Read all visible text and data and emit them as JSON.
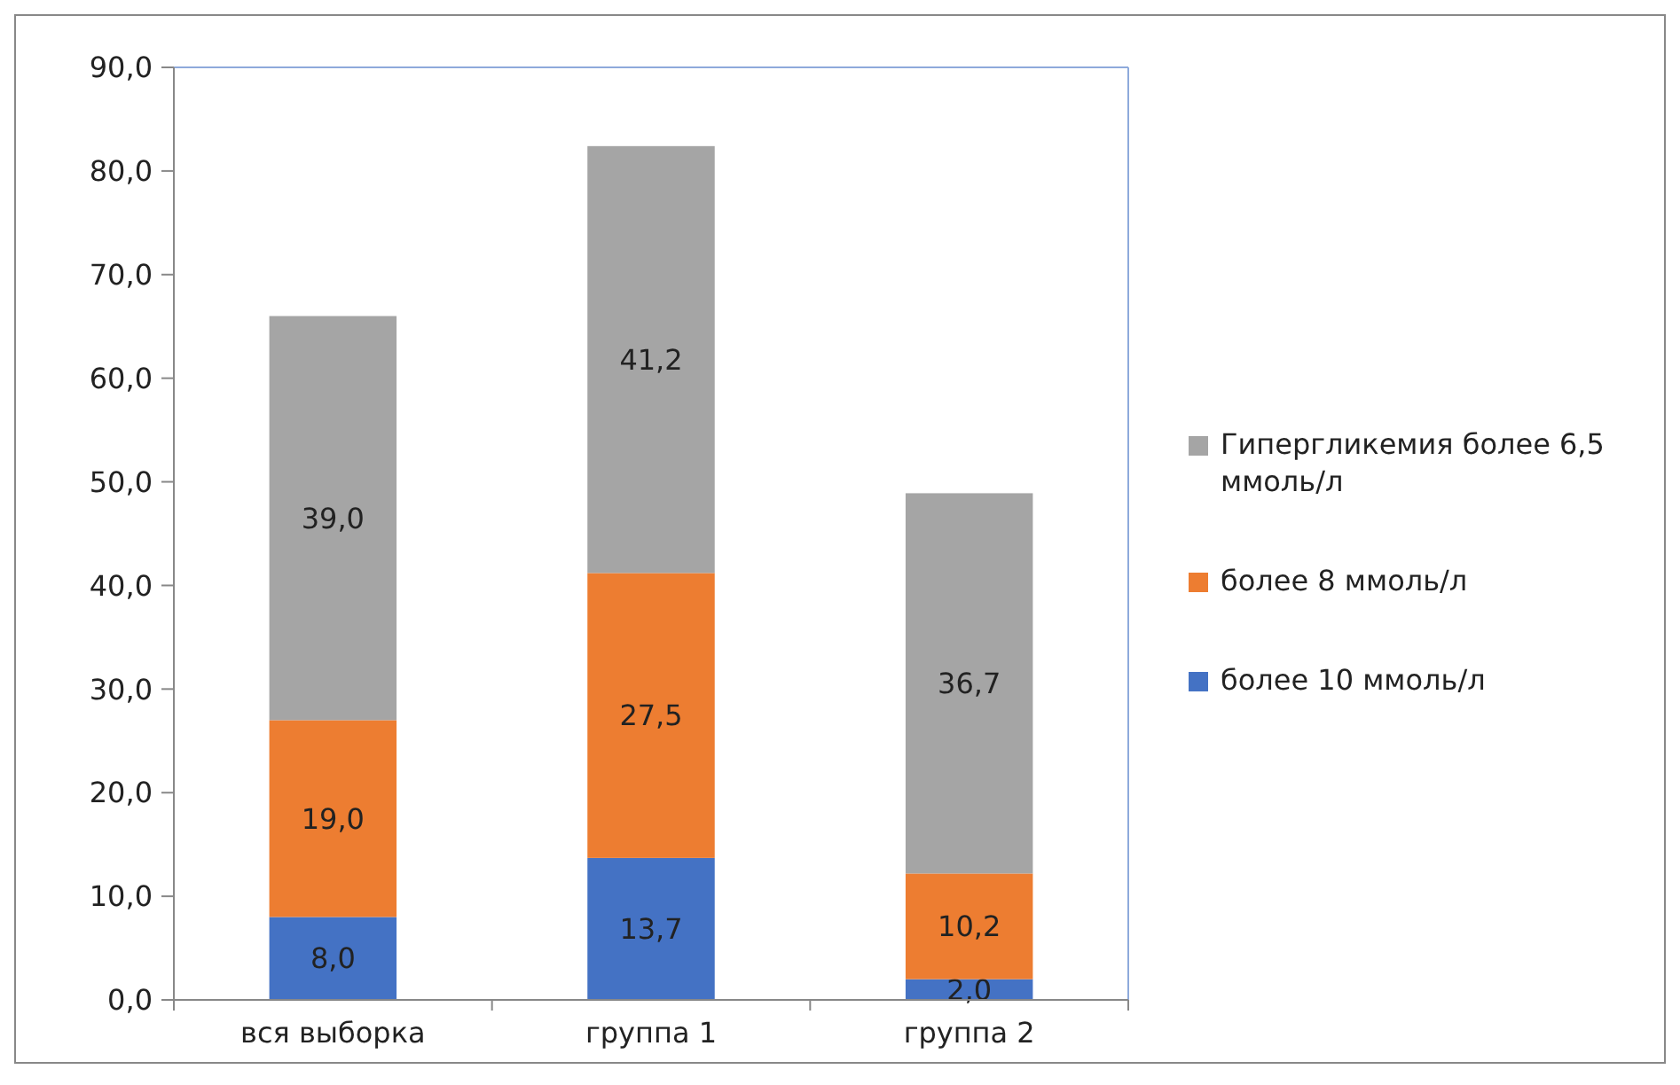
{
  "chart_data": {
    "type": "bar",
    "stacked": true,
    "categories": [
      "вся выборка",
      "группа 1",
      "группа 2"
    ],
    "series": [
      {
        "name": "более 10 ммоль/л",
        "color": "#4472c4",
        "values": [
          8.0,
          13.7,
          2.0
        ],
        "value_labels": [
          "8,0",
          "13,7",
          "2,0"
        ]
      },
      {
        "name": "более 8 ммоль/л",
        "color": "#ed7d31",
        "values": [
          19.0,
          27.5,
          10.2
        ],
        "value_labels": [
          "19,0",
          "27,5",
          "10,2"
        ]
      },
      {
        "name": "Гипергликемия более 6,5 ммоль/л",
        "color": "#a5a5a5",
        "values": [
          39.0,
          41.2,
          36.7
        ],
        "value_labels": [
          "39,0",
          "41,2",
          "36,7"
        ]
      }
    ],
    "ylim": [
      0,
      90
    ],
    "yticks": [
      {
        "value": 0,
        "label": "0,0"
      },
      {
        "value": 10,
        "label": "10,0"
      },
      {
        "value": 20,
        "label": "20,0"
      },
      {
        "value": 30,
        "label": "30,0"
      },
      {
        "value": 40,
        "label": "40,0"
      },
      {
        "value": 50,
        "label": "50,0"
      },
      {
        "value": 60,
        "label": "60,0"
      },
      {
        "value": 70,
        "label": "70,0"
      },
      {
        "value": 80,
        "label": "80,0"
      },
      {
        "value": 90,
        "label": "90,0"
      }
    ],
    "grid": false,
    "legend": "right"
  }
}
